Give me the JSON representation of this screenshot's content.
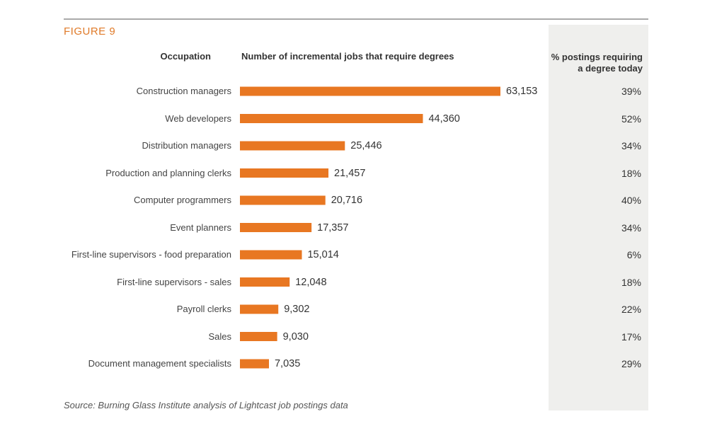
{
  "chart_data": {
    "type": "bar",
    "orientation": "horizontal",
    "figure_label": "FIGURE 9",
    "category_header": "Occupation",
    "value_header": "Number of incremental jobs that require degrees",
    "categories": [
      "Construction managers",
      "Web developers",
      "Distribution managers",
      "Production and planning clerks",
      "Computer programmers",
      "Event planners",
      "First-line supervisors - food preparation",
      "First-line supervisors - sales",
      "Payroll clerks",
      "Sales",
      "Document management specialists"
    ],
    "values": [
      63153,
      44360,
      25446,
      21457,
      20716,
      17357,
      15014,
      12048,
      9302,
      9030,
      7035
    ],
    "value_labels": [
      "63,153",
      "44,360",
      "25,446",
      "21,457",
      "20,716",
      "17,357",
      "15,014",
      "12,048",
      "9,302",
      "9,030",
      "7,035"
    ],
    "color": "#e87722",
    "side_column": {
      "header": "% postings requiring a degree today",
      "values": [
        39,
        52,
        34,
        18,
        40,
        34,
        6,
        18,
        22,
        17,
        29
      ],
      "value_labels": [
        "39%",
        "52%",
        "34%",
        "18%",
        "40%",
        "34%",
        "6%",
        "18%",
        "22%",
        "17%",
        "29%"
      ]
    },
    "source": "Source: Burning Glass Institute analysis of Lightcast job postings data"
  }
}
